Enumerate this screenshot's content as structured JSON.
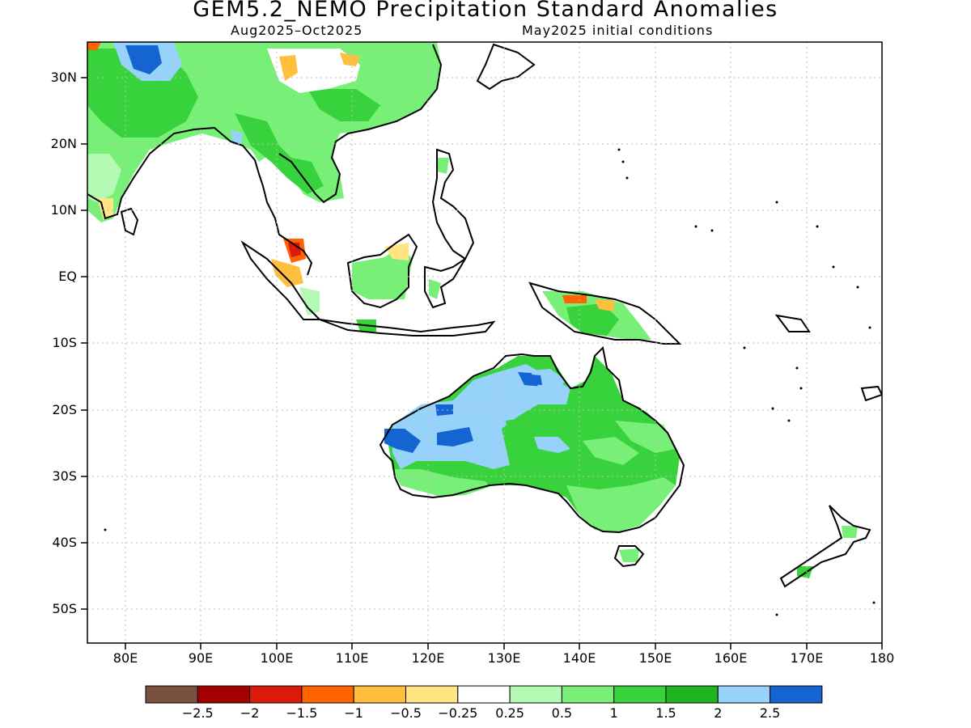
{
  "title": "GEM5.2_NEMO Precipitation Standard Anomalies",
  "subtitle_left": "Aug2025–Oct2025",
  "subtitle_right": "May2025 initial conditions",
  "lat_labels": [
    "30N",
    "20N",
    "10N",
    "EQ",
    "10S",
    "20S",
    "30S",
    "40S",
    "50S"
  ],
  "lon_labels": [
    "80E",
    "90E",
    "100E",
    "110E",
    "120E",
    "130E",
    "140E",
    "150E",
    "160E",
    "170E",
    "180"
  ],
  "colorbar": {
    "colors": [
      "#7a5040",
      "#a50000",
      "#dc1a0a",
      "#ff6400",
      "#ffbe3c",
      "#ffe682",
      "#ffffff",
      "#b4fab4",
      "#78f078",
      "#37d23c",
      "#1eb41e",
      "#96d2fa",
      "#1464d2"
    ],
    "labels": [
      "−2.5",
      "−2",
      "−1.5",
      "−1",
      "−0.5",
      "−0.25",
      "0.25",
      "0.5",
      "1",
      "1.5",
      "2",
      "2.5"
    ]
  },
  "chart_data": {
    "type": "heatmap",
    "title": "GEM5.2_NEMO Precipitation Standard Anomalies",
    "period": "Aug2025–Oct2025",
    "initial_conditions": "May2025 initial conditions",
    "lon_range": [
      75,
      180
    ],
    "lat_range": [
      -55,
      35
    ],
    "grid": true,
    "levels": [
      -2.5,
      -2,
      -1.5,
      -1,
      -0.5,
      -0.25,
      0.25,
      0.5,
      1,
      1.5,
      2,
      2.5
    ],
    "regions": [
      {
        "region": "South/East Asia (India, Indochina, S. China)",
        "anomaly": "0.5 to 1.5"
      },
      {
        "region": "Tibetan Plateau west",
        "anomaly": "2.5"
      },
      {
        "region": "Borneo",
        "anomaly": "0.5 to 1.5"
      },
      {
        "region": "Malay Peninsula",
        "anomaly": "-1.5 to -1"
      },
      {
        "region": "New Guinea",
        "anomaly": "0.5 to 1.5"
      },
      {
        "region": "Australia (interior/east)",
        "anomaly": "1 to 2"
      },
      {
        "region": "Western/NW Australia",
        "anomaly": "2 to 2.5"
      }
    ]
  }
}
